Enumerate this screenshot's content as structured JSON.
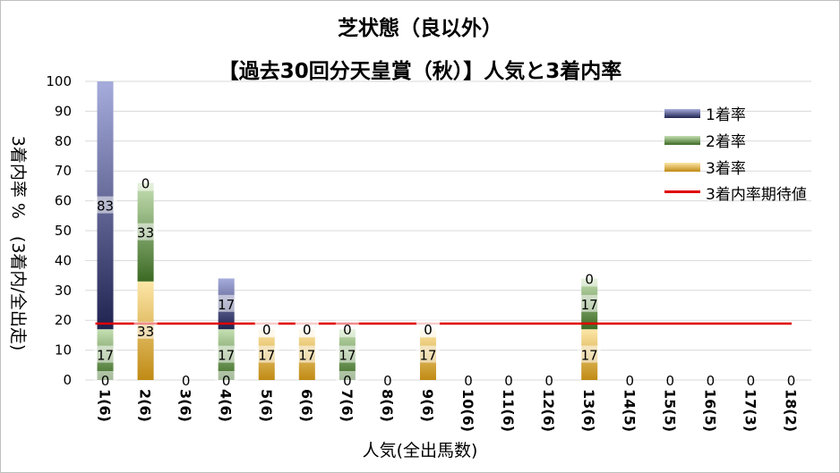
{
  "chart_data": {
    "type": "bar",
    "stacked": true,
    "title": "芝状態（良以外）",
    "subtitle": "【過去30回分天皇賞（秋）】人気と3着内率",
    "xlabel": "人気(全出馬数)",
    "ylabel": "3着内率 %　(3着内/全出走)",
    "ylim": [
      0,
      100
    ],
    "yticks": [
      0,
      10,
      20,
      30,
      40,
      50,
      60,
      70,
      80,
      90,
      100
    ],
    "grid": true,
    "legend_position": "right",
    "categories": [
      "1(6)",
      "2(6)",
      "3(6)",
      "4(6)",
      "5(6)",
      "6(6)",
      "7(6)",
      "8(6)",
      "9(6)",
      "10(6)",
      "11(6)",
      "12(6)",
      "13(6)",
      "14(5)",
      "15(5)",
      "16(5)",
      "17(3)",
      "18(2)"
    ],
    "series": [
      {
        "name": "3着率",
        "color": "#c9a227",
        "values": [
          0,
          33,
          0,
          0,
          17,
          17,
          0,
          0,
          17,
          0,
          0,
          0,
          17,
          0,
          0,
          0,
          0,
          0
        ]
      },
      {
        "name": "2着率",
        "color": "#548235",
        "values": [
          17,
          33,
          0,
          17,
          0,
          0,
          17,
          0,
          0,
          0,
          0,
          0,
          17,
          0,
          0,
          0,
          0,
          0
        ]
      },
      {
        "name": "1着率",
        "color": "#2e3a87",
        "values": [
          83,
          0,
          0,
          17,
          0,
          0,
          0,
          0,
          0,
          0,
          0,
          0,
          0,
          0,
          0,
          0,
          0,
          0
        ]
      }
    ],
    "reference_line": {
      "name": "3着内率期待値",
      "color": "#e00000",
      "value": 18.9
    }
  },
  "legend": [
    {
      "label": "1着率",
      "color": "#2e3a87"
    },
    {
      "label": "2着率",
      "color": "#548235"
    },
    {
      "label": "3着率",
      "color": "#c9a227"
    },
    {
      "label": "3着内率期待値",
      "color": "#e00000"
    }
  ]
}
